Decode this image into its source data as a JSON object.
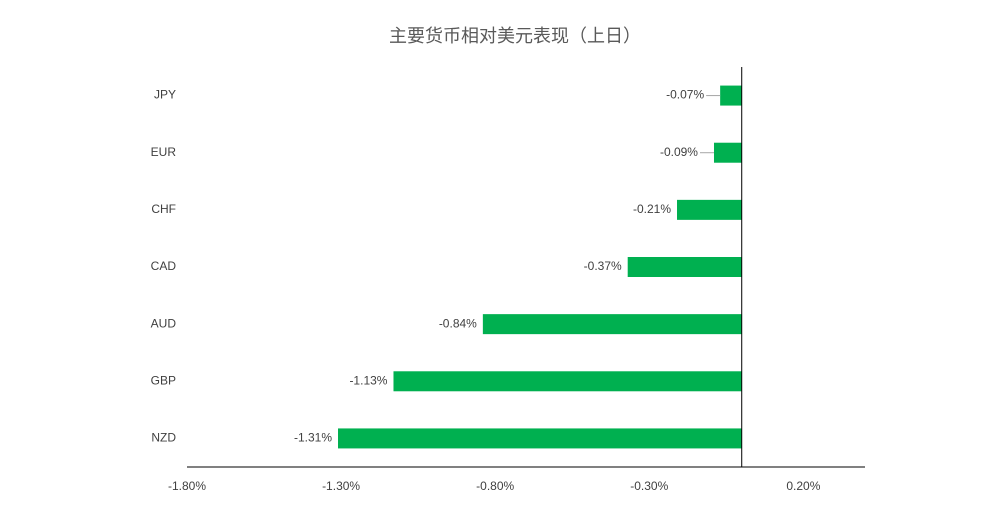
{
  "chart_data": {
    "type": "bar",
    "orientation": "horizontal",
    "title": "主要货币相对美元表现（上日）",
    "categories": [
      "JPY",
      "EUR",
      "CHF",
      "CAD",
      "AUD",
      "GBP",
      "NZD"
    ],
    "values": [
      -0.07,
      -0.09,
      -0.21,
      -0.37,
      -0.84,
      -1.13,
      -1.31
    ],
    "value_labels": [
      "-0.07%",
      "-0.09%",
      "-0.21%",
      "-0.37%",
      "-0.84%",
      "-1.13%",
      "-1.31%"
    ],
    "color": "#00b050",
    "xlim": [
      -1.8,
      0.4
    ],
    "xticks": [
      {
        "value": -1.8,
        "label": "-1.80%"
      },
      {
        "value": -1.3,
        "label": "-1.30%"
      },
      {
        "value": -0.8,
        "label": "-0.80%"
      },
      {
        "value": -0.3,
        "label": "-0.30%"
      },
      {
        "value": 0.2,
        "label": "0.20%"
      }
    ],
    "grid": false
  }
}
